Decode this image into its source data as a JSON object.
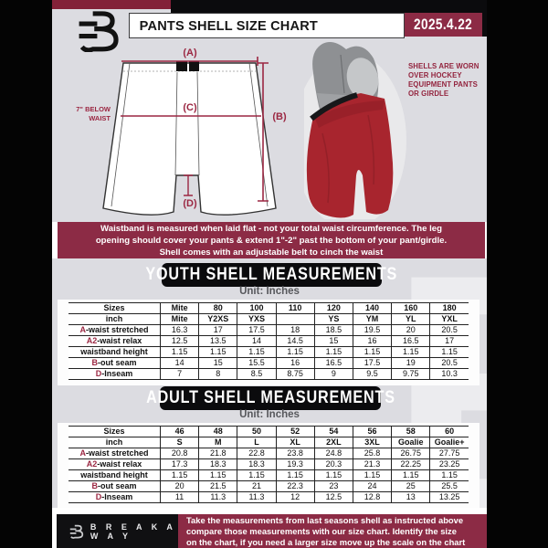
{
  "header": {
    "title": "PANTS SHELL SIZE CHART",
    "date": "2025.4.22"
  },
  "diagram": {
    "label_a": "(A)",
    "label_b": "(B)",
    "label_c": "(C)",
    "label_d": "(D)",
    "waist_note": [
      "7\" BELOW",
      "WAIST"
    ],
    "photo_note": [
      "SHELLS ARE WORN",
      "OVER HOCKEY",
      "EQUIPMENT PANTS",
      "OR GIRDLE"
    ]
  },
  "banner": {
    "lines": [
      "Waistband is measured when laid flat - not your total waist circumference. The leg",
      "opening should cover your pants & extend 1\"-2\" past the bottom of your pant/girdle.",
      "Shell comes with an adjustable belt to cinch the waist"
    ]
  },
  "youth": {
    "title": "YOUTH SHELL MEASUREMENTS",
    "unit": "Unit: Inches",
    "rows": [
      {
        "prefix": "",
        "label": "Sizes",
        "header": true,
        "values": [
          "Mite",
          "80",
          "100",
          "110",
          "120",
          "140",
          "160",
          "180"
        ]
      },
      {
        "prefix": "",
        "label": "inch",
        "header": true,
        "values": [
          "Mite",
          "Y2XS",
          "YXS",
          "",
          "YS",
          "YM",
          "YL",
          "YXL"
        ]
      },
      {
        "prefix": "A",
        "label": "-waist stretched",
        "values": [
          "16.3",
          "17",
          "17.5",
          "18",
          "18.5",
          "19.5",
          "20",
          "20.5"
        ]
      },
      {
        "prefix": "A2",
        "label": "-waist relax",
        "values": [
          "12.5",
          "13.5",
          "14",
          "14.5",
          "15",
          "16",
          "16.5",
          "17"
        ]
      },
      {
        "prefix": "",
        "label": "waistband height",
        "values": [
          "1.15",
          "1.15",
          "1.15",
          "1.15",
          "1.15",
          "1.15",
          "1.15",
          "1.15"
        ]
      },
      {
        "prefix": "B",
        "label": "-out seam",
        "values": [
          "14",
          "15",
          "15.5",
          "16",
          "16.5",
          "17.5",
          "19",
          "20.5"
        ]
      },
      {
        "prefix": "D",
        "label": "-Inseam",
        "values": [
          "7",
          "8",
          "8.5",
          "8.75",
          "9",
          "9.5",
          "9.75",
          "10.3"
        ]
      }
    ]
  },
  "adult": {
    "title": "ADULT SHELL MEASUREMENTS",
    "unit": "Unit: Inches",
    "rows": [
      {
        "prefix": "",
        "label": "Sizes",
        "header": true,
        "values": [
          "46",
          "48",
          "50",
          "52",
          "54",
          "56",
          "58",
          "60"
        ]
      },
      {
        "prefix": "",
        "label": "inch",
        "header": true,
        "values": [
          "S",
          "M",
          "L",
          "XL",
          "2XL",
          "3XL",
          "Goalie",
          "Goalie+"
        ]
      },
      {
        "prefix": "A",
        "label": "-waist stretched",
        "values": [
          "20.8",
          "21.8",
          "22.8",
          "23.8",
          "24.8",
          "25.8",
          "26.75",
          "27.75"
        ]
      },
      {
        "prefix": "A2",
        "label": "-waist relax",
        "values": [
          "17.3",
          "18.3",
          "18.3",
          "19.3",
          "20.3",
          "21.3",
          "22.25",
          "23.25"
        ]
      },
      {
        "prefix": "",
        "label": "waistband height",
        "values": [
          "1.15",
          "1.15",
          "1.15",
          "1.15",
          "1.15",
          "1.15",
          "1.15",
          "1.15"
        ]
      },
      {
        "prefix": "B",
        "label": "-out seam",
        "values": [
          "20",
          "21.5",
          "21",
          "22.3",
          "23",
          "24",
          "25",
          "25.5"
        ]
      },
      {
        "prefix": "D",
        "label": "-Inseam",
        "values": [
          "11",
          "11.3",
          "11.3",
          "12",
          "12.5",
          "12.8",
          "13",
          "13.25"
        ]
      }
    ]
  },
  "footer": {
    "brand": "B R E A K A W A Y",
    "lines": [
      "Take the measurements from last seasons shell as instructed above",
      "compare those measurements  with our size chart. Identify the size",
      "on the chart, if you need a larger size move up the scale on the chart"
    ]
  },
  "watermark_letter": "B",
  "colors": {
    "maroon": "#8C2B45",
    "accent_text": "#9B2742",
    "background_gray": "#dcdce1",
    "black": "#0b0b0d",
    "shell_red": "#a8252e"
  }
}
